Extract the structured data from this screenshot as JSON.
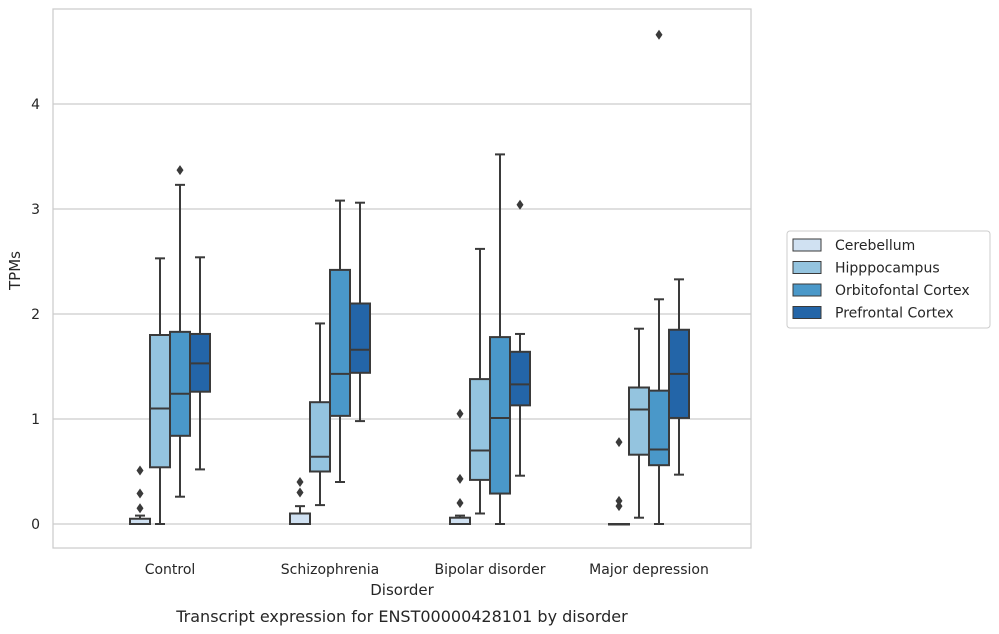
{
  "chart_data": {
    "type": "boxplot",
    "xlabel": "Disorder",
    "ylabel": "TPMs",
    "caption": "Transcript expression for ENST00000428101 by disorder",
    "ylim": [
      -0.23,
      4.9
    ],
    "yticks": [
      0,
      1,
      2,
      3,
      4
    ],
    "grid": true,
    "legend_position": "right",
    "categories": [
      "Control",
      "Schizophrenia",
      "Bipolar disorder",
      "Major depression"
    ],
    "series": [
      {
        "name": "Cerebellum",
        "color": "#d0e1f2",
        "boxes": [
          {
            "whislo": 0.0,
            "q1": 0.0,
            "med": 0.0,
            "q3": 0.05,
            "whishi": 0.08,
            "fliers": [
              0.15,
              0.29,
              0.51
            ]
          },
          {
            "whislo": 0.0,
            "q1": 0.0,
            "med": 0.0,
            "q3": 0.1,
            "whishi": 0.17,
            "fliers": [
              0.3,
              0.4
            ]
          },
          {
            "whislo": 0.0,
            "q1": 0.0,
            "med": 0.0,
            "q3": 0.06,
            "whishi": 0.08,
            "fliers": [
              0.2,
              0.43,
              1.05
            ]
          },
          {
            "whislo": 0.0,
            "q1": 0.0,
            "med": 0.0,
            "q3": 0.0,
            "whishi": 0.0,
            "fliers": [
              0.17,
              0.22,
              0.78
            ]
          }
        ]
      },
      {
        "name": "Hipppocampus",
        "color": "#94c4df",
        "boxes": [
          {
            "whislo": 0.0,
            "q1": 0.54,
            "med": 1.1,
            "q3": 1.8,
            "whishi": 2.53,
            "fliers": []
          },
          {
            "whislo": 0.18,
            "q1": 0.5,
            "med": 0.64,
            "q3": 1.16,
            "whishi": 1.91,
            "fliers": []
          },
          {
            "whislo": 0.1,
            "q1": 0.42,
            "med": 0.7,
            "q3": 1.38,
            "whishi": 2.62,
            "fliers": []
          },
          {
            "whislo": 0.06,
            "q1": 0.66,
            "med": 1.09,
            "q3": 1.3,
            "whishi": 1.86,
            "fliers": []
          }
        ]
      },
      {
        "name": "Orbitofontal Cortex",
        "color": "#4a98c9",
        "boxes": [
          {
            "whislo": 0.26,
            "q1": 0.84,
            "med": 1.24,
            "q3": 1.83,
            "whishi": 3.23,
            "fliers": [
              3.37
            ]
          },
          {
            "whislo": 0.4,
            "q1": 1.03,
            "med": 1.43,
            "q3": 2.42,
            "whishi": 3.08,
            "fliers": []
          },
          {
            "whislo": 0.0,
            "q1": 0.29,
            "med": 1.01,
            "q3": 1.78,
            "whishi": 3.52,
            "fliers": []
          },
          {
            "whislo": 0.0,
            "q1": 0.56,
            "med": 0.71,
            "q3": 1.27,
            "whishi": 2.14,
            "fliers": [
              4.66
            ]
          }
        ]
      },
      {
        "name": "Prefrontal Cortex",
        "color": "#2365a8",
        "boxes": [
          {
            "whislo": 0.52,
            "q1": 1.26,
            "med": 1.53,
            "q3": 1.81,
            "whishi": 2.54,
            "fliers": []
          },
          {
            "whislo": 0.98,
            "q1": 1.44,
            "med": 1.66,
            "q3": 2.1,
            "whishi": 3.06,
            "fliers": []
          },
          {
            "whislo": 0.46,
            "q1": 1.13,
            "med": 1.33,
            "q3": 1.64,
            "whishi": 1.81,
            "fliers": [
              3.04
            ]
          },
          {
            "whislo": 0.47,
            "q1": 1.01,
            "med": 1.43,
            "q3": 1.85,
            "whishi": 2.33,
            "fliers": []
          }
        ]
      }
    ]
  }
}
